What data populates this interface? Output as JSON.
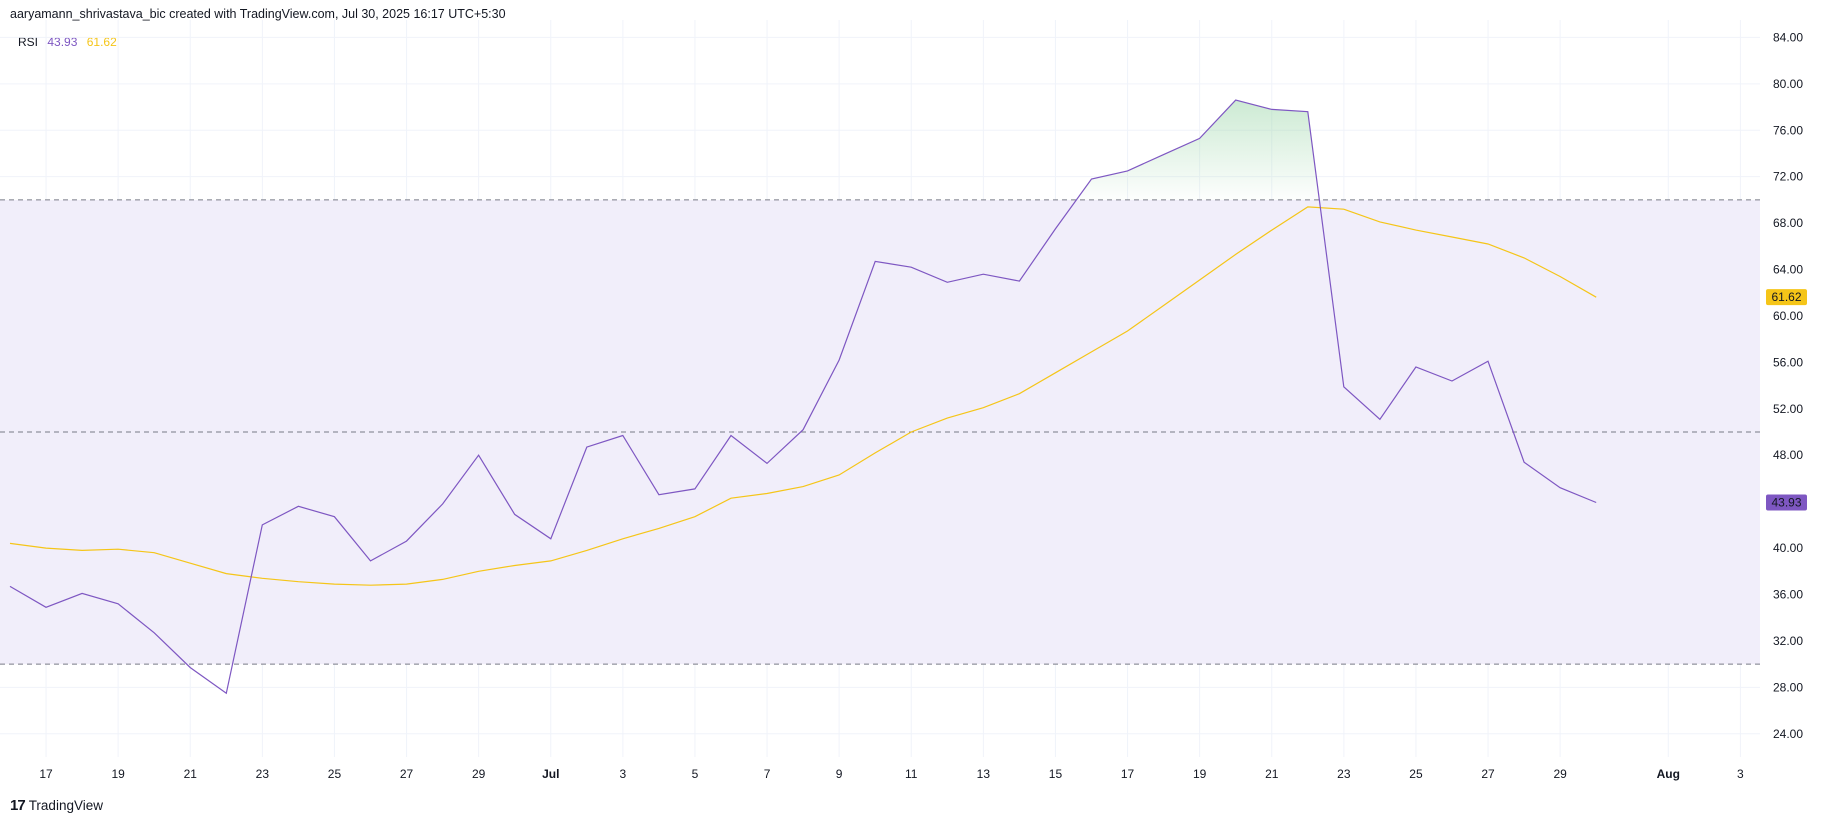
{
  "header": {
    "attribution": "aaryamann_shrivastava_bic created with TradingView.com, Jul 30, 2025 16:17 UTC+5:30"
  },
  "legend": {
    "name": "RSI",
    "rsi_value": "43.93",
    "ma_value": "61.62"
  },
  "brand": {
    "logo_text": "TradingView"
  },
  "colors": {
    "rsi_line": "#7e57c2",
    "ma_line": "#f5c518",
    "band_fill": "#f1eefa",
    "overbought_fill": "#b9e2c0",
    "rsi_badge": "#7e57c2",
    "ma_badge": "#f5c518"
  },
  "chart_data": {
    "type": "line",
    "x": [
      "Jun 16",
      "Jun 17",
      "Jun 18",
      "Jun 19",
      "Jun 20",
      "Jun 21",
      "Jun 22",
      "Jun 23",
      "Jun 24",
      "Jun 25",
      "Jun 26",
      "Jun 27",
      "Jun 28",
      "Jun 29",
      "Jun 30",
      "Jul 1",
      "Jul 2",
      "Jul 3",
      "Jul 4",
      "Jul 5",
      "Jul 6",
      "Jul 7",
      "Jul 8",
      "Jul 9",
      "Jul 10",
      "Jul 11",
      "Jul 12",
      "Jul 13",
      "Jul 14",
      "Jul 15",
      "Jul 16",
      "Jul 17",
      "Jul 18",
      "Jul 19",
      "Jul 20",
      "Jul 21",
      "Jul 22",
      "Jul 23",
      "Jul 24",
      "Jul 25",
      "Jul 26",
      "Jul 27",
      "Jul 28",
      "Jul 29",
      "Jul 30"
    ],
    "series": [
      {
        "name": "RSI",
        "values": [
          36.7,
          34.9,
          36.1,
          35.2,
          32.7,
          29.7,
          27.5,
          42.0,
          43.6,
          42.7,
          38.9,
          40.6,
          43.8,
          48.0,
          42.9,
          40.8,
          48.7,
          49.7,
          44.6,
          45.1,
          49.7,
          47.3,
          50.2,
          56.2,
          64.7,
          64.2,
          62.9,
          63.6,
          63.0,
          67.5,
          71.8,
          72.5,
          73.9,
          75.3,
          78.6,
          77.8,
          77.6,
          53.9,
          51.1,
          55.6,
          54.4,
          56.1,
          47.4,
          45.2,
          43.93
        ]
      },
      {
        "name": "RSI-based MA",
        "values": [
          40.4,
          40.0,
          39.8,
          39.9,
          39.6,
          38.7,
          37.8,
          37.4,
          37.1,
          36.9,
          36.8,
          36.9,
          37.3,
          38.0,
          38.5,
          38.9,
          39.8,
          40.8,
          41.7,
          42.7,
          44.3,
          44.7,
          45.3,
          46.3,
          48.2,
          50.0,
          51.2,
          52.1,
          53.3,
          55.1,
          56.9,
          58.7,
          60.9,
          63.1,
          65.3,
          67.4,
          69.4,
          69.2,
          68.1,
          67.4,
          66.8,
          66.2,
          65.0,
          63.4,
          61.62
        ]
      }
    ],
    "ylim": [
      22.0,
      85.5
    ],
    "yticks": [
      "84.00",
      "80.00",
      "76.00",
      "72.00",
      "68.00",
      "64.00",
      "60.00",
      "56.00",
      "52.00",
      "48.00",
      "44.00",
      "40.00",
      "36.00",
      "32.00",
      "28.00",
      "24.00"
    ],
    "xticks": [
      "17",
      "19",
      "21",
      "23",
      "25",
      "27",
      "29",
      "Jul",
      "3",
      "5",
      "7",
      "9",
      "11",
      "13",
      "15",
      "17",
      "19",
      "21",
      "23",
      "25",
      "27",
      "29",
      "Aug",
      "3"
    ],
    "bands": {
      "upper": 70,
      "middle": 50,
      "lower": 30
    },
    "last_values": {
      "rsi": "43.93",
      "ma": "61.62"
    },
    "grid": true
  }
}
